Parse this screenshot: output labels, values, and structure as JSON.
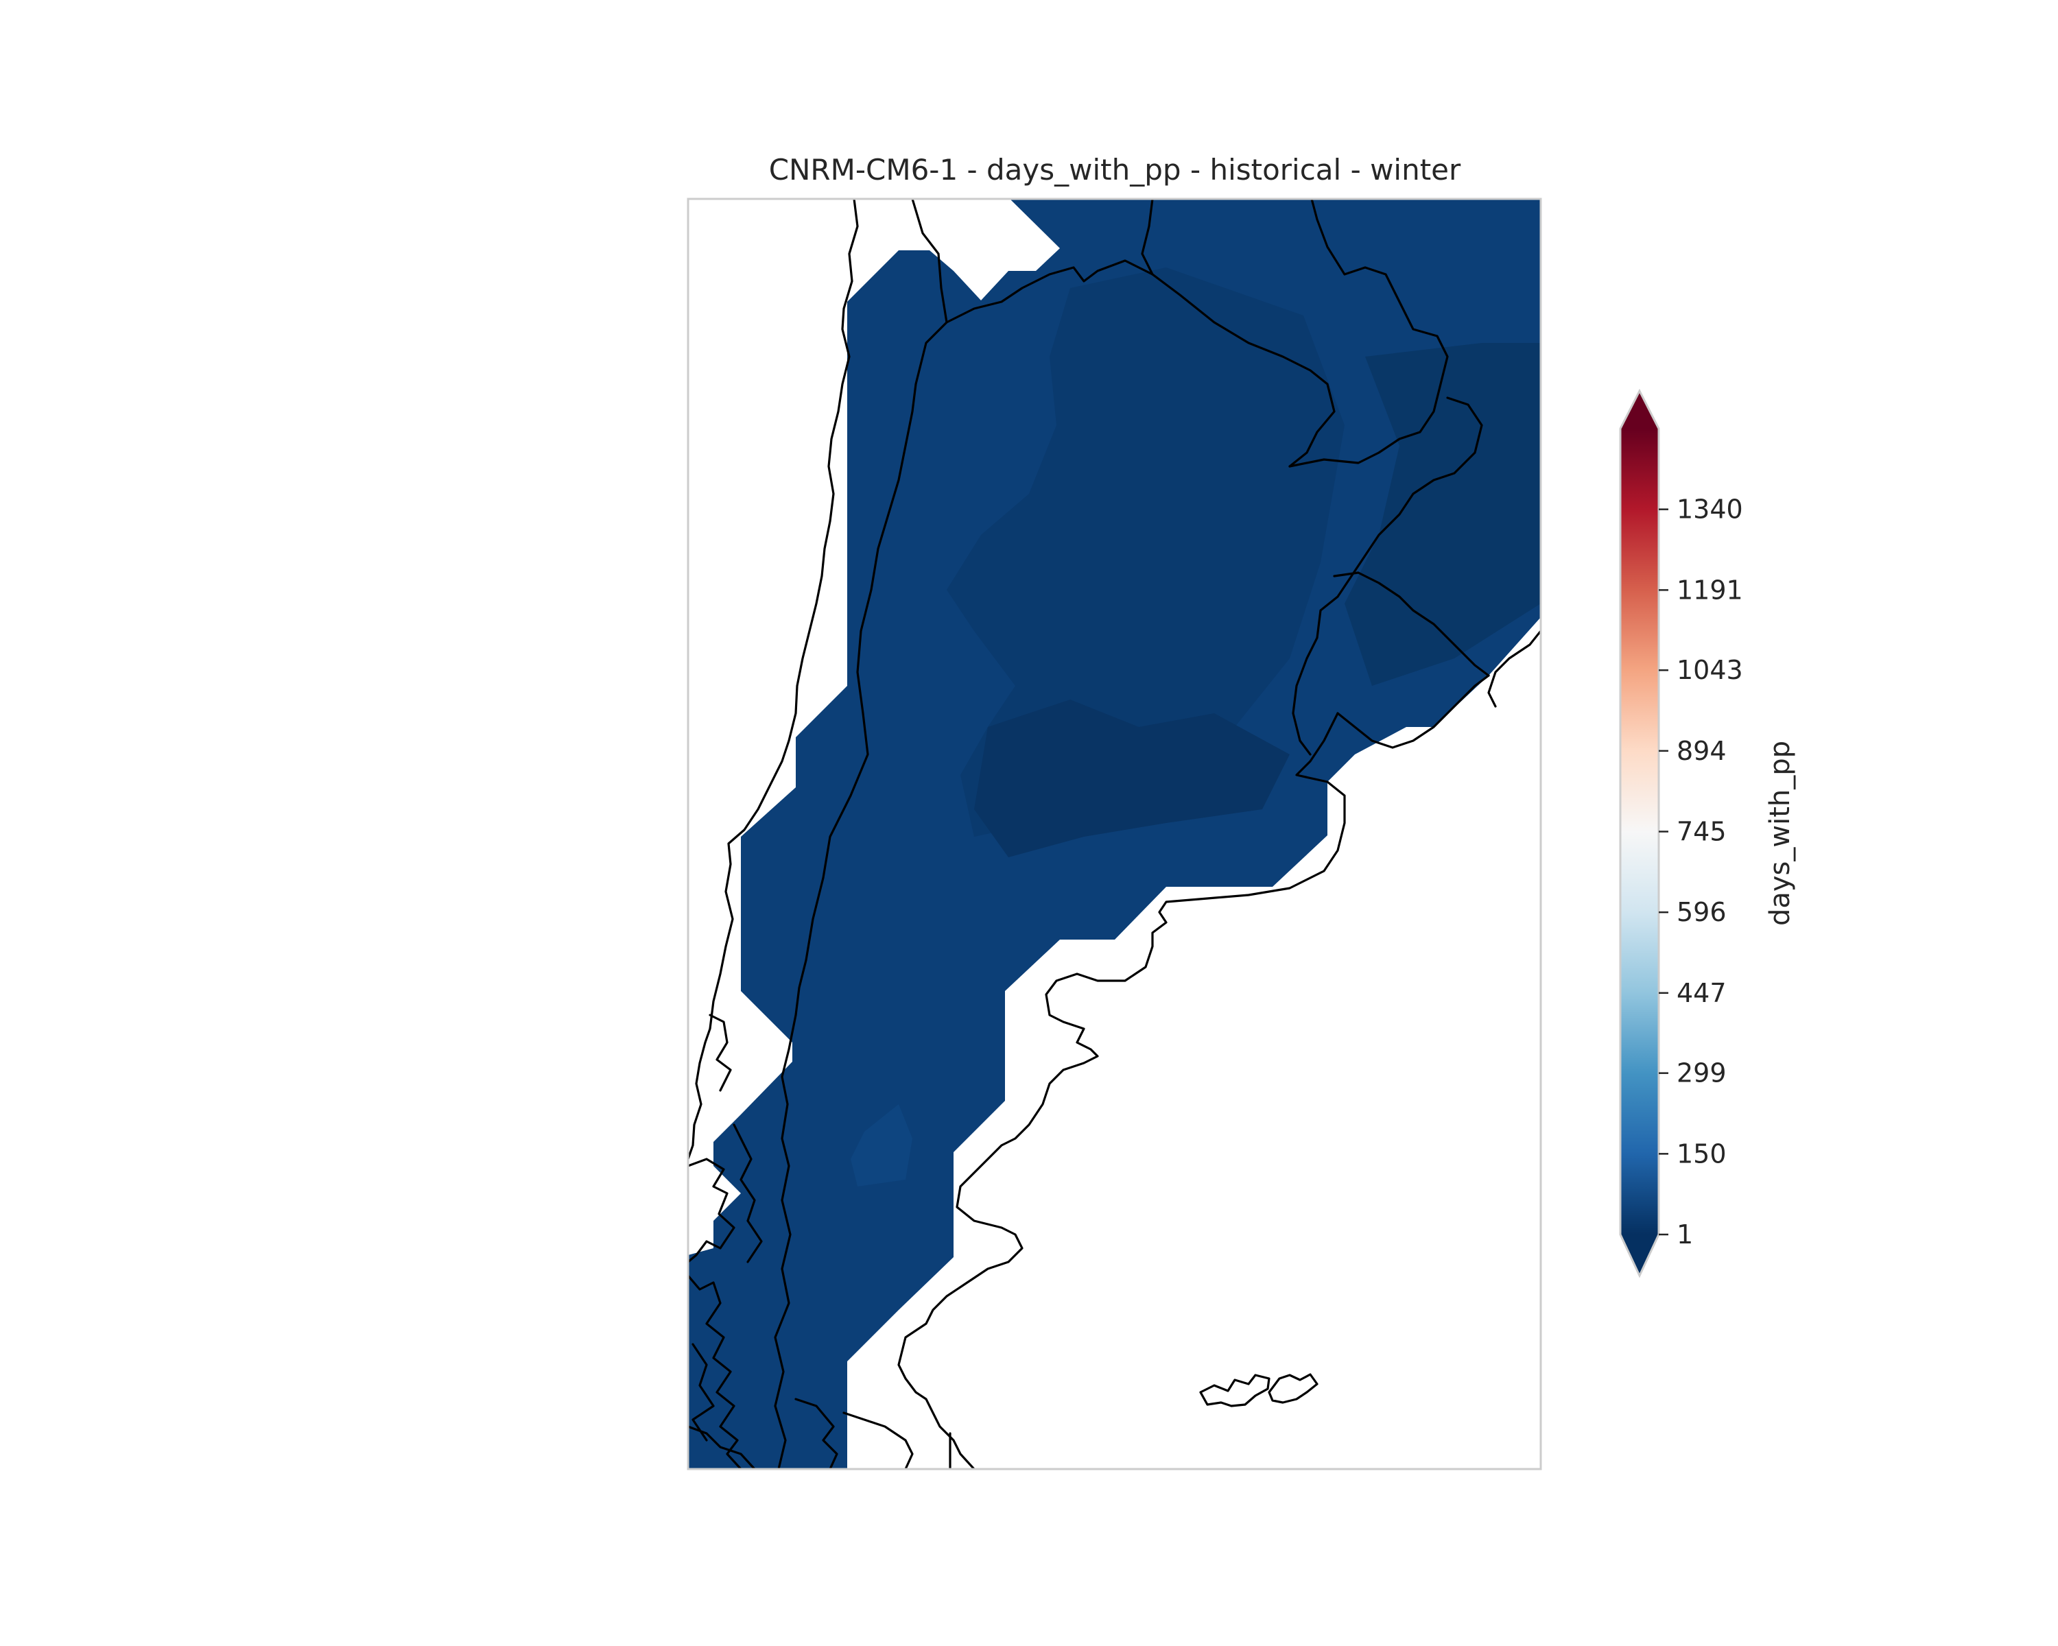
{
  "title": "CNRM-CM6-1 - days_with_pp - historical - winter",
  "colorbar": {
    "label": "days_with_pp",
    "ticks": [
      "1340",
      "1191",
      "1043",
      "894",
      "745",
      "596",
      "447",
      "299",
      "150",
      "1"
    ],
    "tick_values": [
      1340,
      1191,
      1043,
      894,
      745,
      596,
      447,
      299,
      150,
      1
    ],
    "range": [
      1,
      1489
    ],
    "extend": "both",
    "colormap": [
      "#053061",
      "#2166ac",
      "#4393c3",
      "#92c5de",
      "#d1e5f0",
      "#f7f7f7",
      "#fddbc7",
      "#f4a582",
      "#d6604d",
      "#b2182b",
      "#67001f"
    ]
  },
  "map": {
    "region": "Southern South America (Argentina)",
    "fill_colors": [
      "#0a3a6e",
      "#0c3f77",
      "#093464"
    ],
    "coastline_color": "#000000",
    "frame_color": "#cccccc"
  }
}
